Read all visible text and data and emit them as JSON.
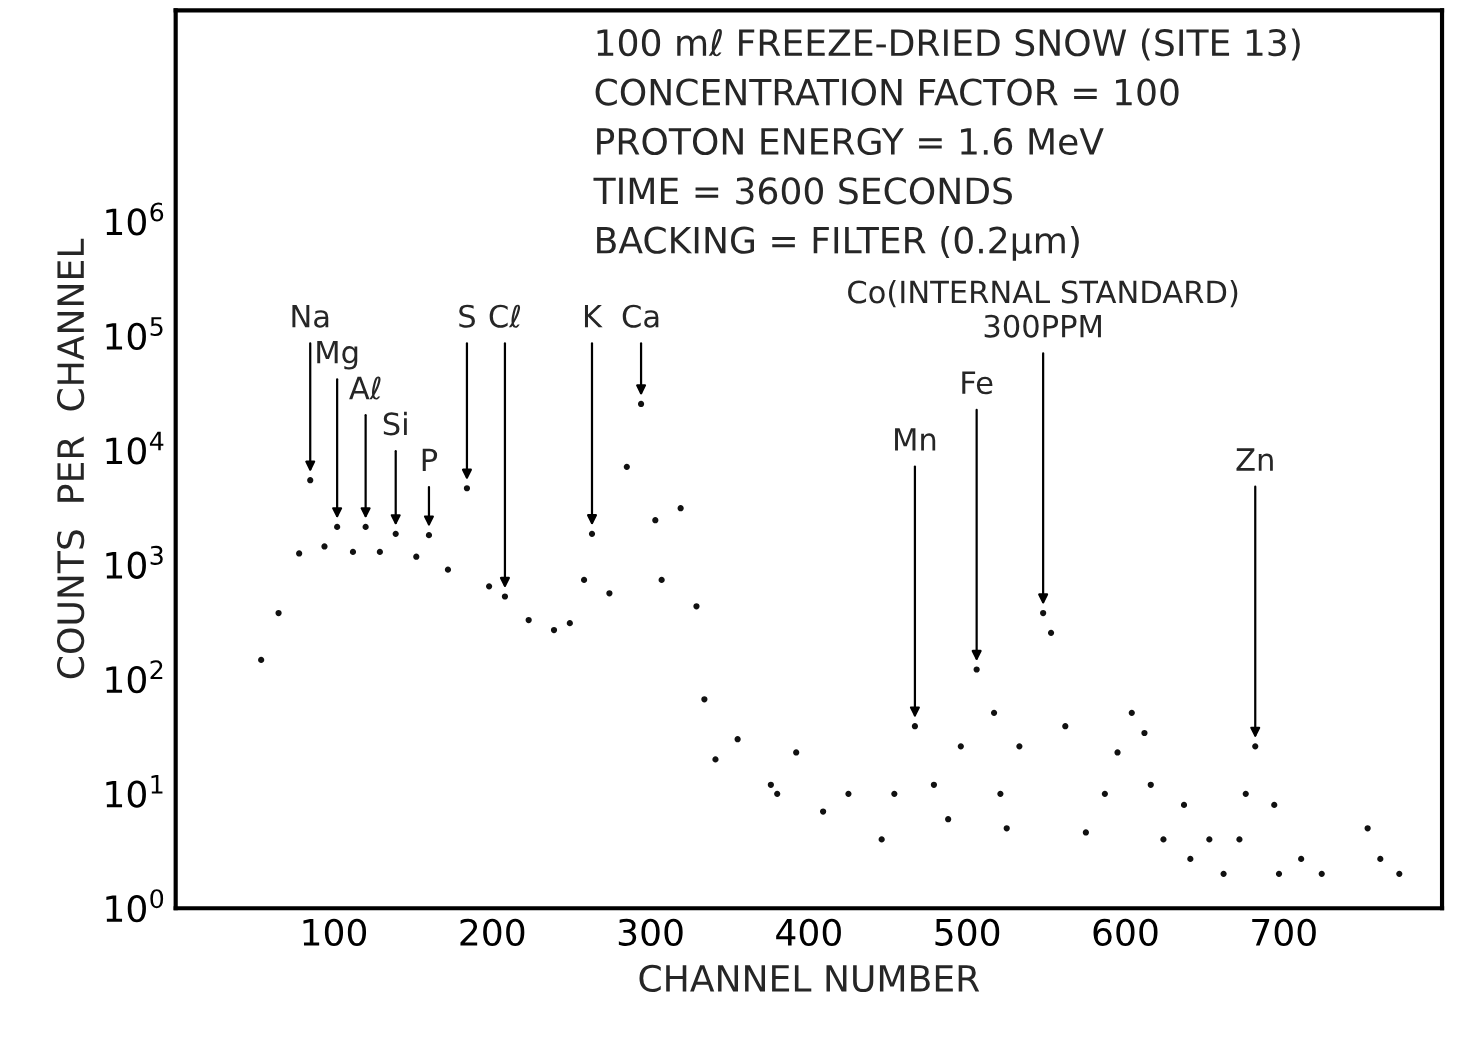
{
  "chart_data": {
    "type": "scatter",
    "xlabel": "CHANNEL NUMBER",
    "ylabel": "COUNTS  PER  CHANNEL",
    "x": [
      54,
      65,
      78,
      85,
      94,
      102,
      112,
      120,
      129,
      139,
      152,
      160,
      172,
      184,
      198,
      208,
      223,
      239,
      249,
      258,
      263,
      274,
      285,
      294,
      303,
      307,
      319,
      329,
      334,
      341,
      355,
      376,
      380,
      392,
      409,
      425,
      446,
      454,
      467,
      479,
      488,
      496,
      506,
      517,
      521,
      525,
      533,
      548,
      553,
      562,
      575,
      587,
      595,
      604,
      612,
      616,
      624,
      637,
      641,
      653,
      662,
      672,
      676,
      682,
      694,
      697,
      711,
      724,
      753,
      761,
      773
    ],
    "series": [
      {
        "color": "#111111",
        "values": [
          148,
          380,
          1260,
          5500,
          1450,
          2150,
          1300,
          2150,
          1300,
          1870,
          1180,
          1820,
          910,
          4680,
          650,
          530,
          330,
          270,
          310,
          740,
          1870,
          565,
          7200,
          25500,
          2460,
          740,
          3130,
          435,
          67,
          20,
          30,
          12,
          10,
          23,
          7,
          10,
          4,
          10,
          39,
          12,
          6,
          26,
          122,
          51,
          10,
          5,
          26,
          380,
          255,
          39,
          4.6,
          10,
          23,
          51,
          34,
          12,
          4,
          8,
          2.7,
          4,
          2,
          4,
          10,
          26,
          8,
          2,
          2.7,
          2,
          5,
          2.7,
          2
        ]
      }
    ],
    "marker": "circle",
    "log": "y",
    "grid": false,
    "legend": false,
    "xlim": [
      0,
      800
    ],
    "xticks": [
      100,
      200,
      300,
      400,
      500,
      600,
      700
    ],
    "ylim": [
      1,
      70000000
    ],
    "yticks": [
      {
        "value": 1,
        "label": "10$^{0}$"
      },
      {
        "value": 10,
        "label": "10$^{1}$"
      },
      {
        "value": 100,
        "label": "10$^{2}$"
      },
      {
        "value": 1000,
        "label": "10$^{3}$"
      },
      {
        "value": 10000,
        "label": "10$^{4}$"
      },
      {
        "value": 100000,
        "label": "10$^{5}$"
      },
      {
        "value": 1000000,
        "label": "10$^{6}$"
      }
    ],
    "annotations": [
      "100 mℓ FREEZE-DRIED SNOW (SITE 13)",
      "CONCENTRATION FACTOR = 100",
      "PROTON ENERGY = 1.6 MeV",
      "TIME = 3600 SECONDS",
      "BACKING = FILTER (0.2μm)",
      {
        "text": "Na",
        "x": 85,
        "y": 5500
      },
      {
        "text": "Mg",
        "x": 102,
        "y": 2150
      },
      {
        "text": "Aℓ",
        "x": 120,
        "y": 2150
      },
      {
        "text": "Si",
        "x": 139,
        "y": 1870
      },
      {
        "text": "P",
        "x": 160,
        "y": 1820
      },
      {
        "text": "S",
        "x": 184,
        "y": 4680
      },
      {
        "text": "Cℓ",
        "x": 208,
        "y": 530
      },
      {
        "text": "K",
        "x": 263,
        "y": 1870
      },
      {
        "text": "Ca",
        "x": 294,
        "y": 25500
      },
      {
        "text": "Mn",
        "x": 467,
        "y": 39
      },
      {
        "text": "Fe",
        "x": 506,
        "y": 122
      },
      {
        "text": "Co(INTERNAL STANDARD)\n300PPM",
        "x": 548,
        "y": 380
      },
      {
        "text": "Zn",
        "x": 682,
        "y": 26
      }
    ]
  }
}
